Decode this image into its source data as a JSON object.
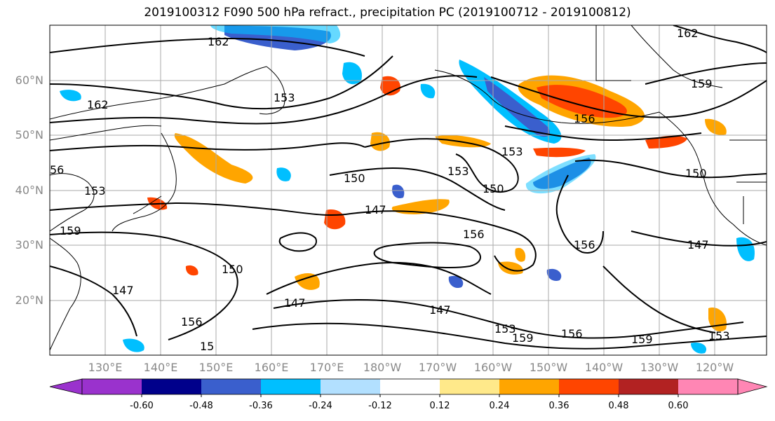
{
  "title": "2019100312 F090 500 hPa refract., precipitation PC (2019100712 - 2019100812)",
  "lat_labels": [
    "60°N",
    "50°N",
    "40°N",
    "30°N",
    "20°N"
  ],
  "lon_labels": [
    "130°E",
    "140°E",
    "150°E",
    "160°E",
    "170°E",
    "180°W",
    "170°W",
    "160°W",
    "150°W",
    "140°W",
    "130°W",
    "120°W"
  ],
  "contour_labels": [
    "162",
    "162",
    "162",
    "159",
    "159",
    "156",
    "156",
    "156",
    "156",
    "153",
    "153",
    "153",
    "153",
    "150",
    "150",
    "150",
    "150",
    "147",
    "147",
    "147",
    "147",
    "147",
    "156",
    "56",
    "15",
    "159",
    "159",
    "153",
    "153"
  ],
  "colorbar": {
    "tick_labels": [
      "-0.60",
      "-0.48",
      "-0.36",
      "-0.24",
      "-0.12",
      "0.12",
      "0.24",
      "0.36",
      "0.48",
      "0.60"
    ],
    "colors": [
      "#9a32cd",
      "#00008b",
      "#3a5fcd",
      "#00bfff",
      "#b2e0ff",
      "#ffffff",
      "#ffe98a",
      "#ffa500",
      "#ff4500",
      "#b22222",
      "#ff86b4"
    ]
  },
  "shading_colors": {
    "neg_strong": "#3a5fcd",
    "neg_mid": "#00bfff",
    "neg_weak": "#b2e0ff",
    "pos_weak": "#ffe98a",
    "pos_mid": "#ffa500",
    "pos_strong": "#ff4500"
  }
}
